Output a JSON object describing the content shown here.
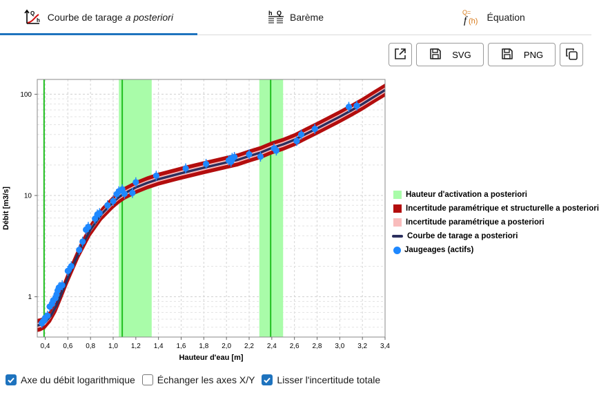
{
  "tabs": [
    {
      "label": "Courbe de tarage",
      "label_italic": "a posteriori",
      "icon": "rating-curve-icon",
      "active": true
    },
    {
      "label": "Barème",
      "icon": "table-hq-icon",
      "active": false
    },
    {
      "label": "Équation",
      "icon": "equation-icon",
      "active": false
    }
  ],
  "toolbar": {
    "svg_label": "SVG",
    "png_label": "PNG",
    "icons": [
      "external-window-icon",
      "save-icon",
      "copy-icon"
    ]
  },
  "checkboxes": [
    {
      "label": "Axe du débit logarithmique",
      "checked": true
    },
    {
      "label": "Échanger les axes X/Y",
      "checked": false
    },
    {
      "label": "Lisser l'incertitude totale",
      "checked": true
    }
  ],
  "colors": {
    "activation": "#a9fca9",
    "activation_line": "#1fbf1f",
    "struct_band": "#b30d0d",
    "param_band": "#f9bcbc",
    "curve": "#2b2f5e",
    "gaugings": "#1e88ff",
    "tab_accent": "#1e73be"
  },
  "chart_data": {
    "type": "line",
    "xlabel": "Hauteur d'eau [m]",
    "ylabel": "Débit [m3/s]",
    "xlim": [
      0.33,
      3.4
    ],
    "ylim": [
      0.4,
      140
    ],
    "yscale": "log",
    "grid": true,
    "legend_position": "right",
    "x_ticks": [
      "0,4",
      "0,6",
      "0,8",
      "1,0",
      "1,2",
      "1,4",
      "1,6",
      "1,8",
      "2,0",
      "2,2",
      "2,4",
      "2,6",
      "2,8",
      "3,0",
      "3,2",
      "3,4"
    ],
    "x_tick_values": [
      0.4,
      0.6,
      0.8,
      1.0,
      1.2,
      1.4,
      1.6,
      1.8,
      2.0,
      2.2,
      2.4,
      2.6,
      2.8,
      3.0,
      3.2,
      3.4
    ],
    "y_ticks": [
      "1",
      "10",
      "100"
    ],
    "y_tick_values": [
      1,
      10,
      100
    ],
    "legend": [
      {
        "label": "Hauteur d'activation a posteriori",
        "key": "activation"
      },
      {
        "label": "Incertitude paramétrique et structurelle a posteriori",
        "key": "struct_band"
      },
      {
        "label": "Incertitude paramétrique a posteriori",
        "key": "param_band"
      },
      {
        "label": "Courbe de tarage a posteriori",
        "key": "curve"
      },
      {
        "label": "Jaugeages (actifs)",
        "key": "gaugings"
      }
    ],
    "activation_ranges": [
      {
        "h": 0.39,
        "h_min": 0.385,
        "h_max": 0.395
      },
      {
        "h": 1.08,
        "h_min": 1.05,
        "h_max": 1.34
      },
      {
        "h": 2.39,
        "h_min": 2.29,
        "h_max": 2.5
      }
    ],
    "curve": {
      "h": [
        0.33,
        0.36,
        0.4,
        0.45,
        0.5,
        0.55,
        0.6,
        0.7,
        0.8,
        0.9,
        1.0,
        1.05,
        1.1,
        1.2,
        1.3,
        1.4,
        1.6,
        1.8,
        2.0,
        2.1,
        2.2,
        2.3,
        2.4,
        2.5,
        2.6,
        2.7,
        2.8,
        3.0,
        3.1,
        3.2,
        3.3,
        3.4
      ],
      "q": [
        0.52,
        0.53,
        0.56,
        0.65,
        0.82,
        1.12,
        1.55,
        2.8,
        4.6,
        6.6,
        8.6,
        9.6,
        10.5,
        12.0,
        13.3,
        14.5,
        16.6,
        18.8,
        21.2,
        22.5,
        24.5,
        26.5,
        29.5,
        32.0,
        35.5,
        40.5,
        46.0,
        60.0,
        69.0,
        80.0,
        94.0,
        110.0
      ]
    },
    "param_band_factor": 0.06,
    "struct_band_factor": 0.16,
    "gaugings": {
      "h": [
        0.37,
        0.38,
        0.39,
        0.4,
        0.42,
        0.44,
        0.46,
        0.47,
        0.49,
        0.5,
        0.51,
        0.52,
        0.53,
        0.55,
        0.6,
        0.63,
        0.7,
        0.73,
        0.76,
        0.78,
        0.84,
        0.86,
        0.88,
        0.95,
        1.0,
        1.03,
        1.05,
        1.08,
        1.1,
        1.17,
        1.2,
        1.38,
        1.64,
        1.82,
        2.02,
        2.04,
        2.05,
        2.07,
        2.2,
        2.3,
        2.42,
        2.44,
        2.62,
        2.66,
        2.78,
        3.08,
        3.15
      ],
      "q": [
        0.55,
        0.57,
        0.58,
        0.62,
        0.65,
        0.8,
        0.85,
        0.92,
        0.97,
        1.05,
        1.15,
        1.23,
        1.25,
        1.3,
        1.8,
        2.0,
        2.9,
        3.5,
        4.6,
        4.9,
        5.9,
        6.5,
        6.7,
        8.0,
        8.8,
        10.3,
        11.0,
        11.5,
        10.4,
        10.6,
        13.5,
        15.7,
        18.5,
        20.5,
        22.2,
        21.5,
        23.5,
        24.0,
        25.5,
        24.2,
        29.2,
        27.8,
        34.5,
        40.0,
        45.5,
        75.0,
        77.0
      ]
    }
  }
}
